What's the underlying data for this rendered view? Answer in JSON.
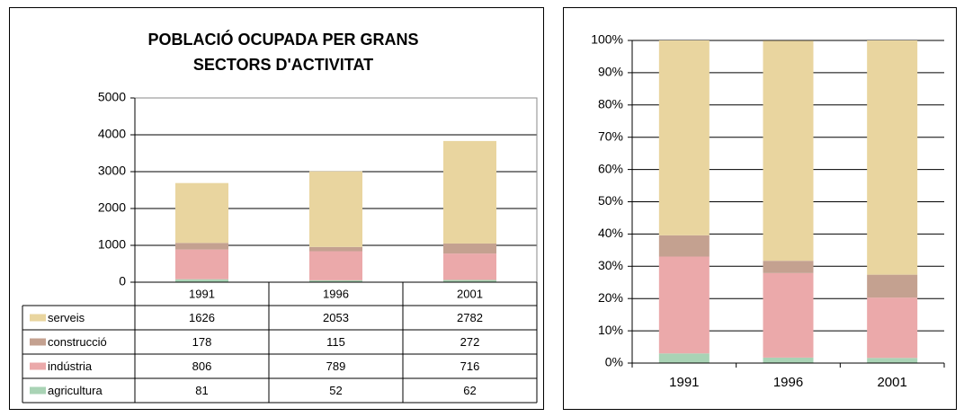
{
  "chart_data": [
    {
      "type": "bar",
      "stacked": true,
      "title": [
        "POBLACIÓ OCUPADA PER GRANS",
        "SECTORS D'ACTIVITAT"
      ],
      "categories": [
        "1991",
        "1996",
        "2001"
      ],
      "series": [
        {
          "name": "agricultura",
          "color": "#a9d3b5",
          "values": [
            81,
            52,
            62
          ]
        },
        {
          "name": "indústria",
          "color": "#eba9aa",
          "values": [
            806,
            789,
            716
          ]
        },
        {
          "name": "construcció",
          "color": "#c4a190",
          "values": [
            178,
            115,
            272
          ]
        },
        {
          "name": "serveis",
          "color": "#e9d59f",
          "values": [
            1626,
            2053,
            2782
          ]
        }
      ],
      "ylim": [
        0,
        5000
      ],
      "yticks": [
        0,
        1000,
        2000,
        3000,
        4000,
        5000
      ],
      "grid": true,
      "data_table": true
    },
    {
      "type": "bar",
      "stacked": true,
      "categories": [
        "1991",
        "1996",
        "2001"
      ],
      "series": [
        {
          "color": "#a9d3b5",
          "values": [
            3.0,
            1.7,
            1.6
          ]
        },
        {
          "color": "#eba9aa",
          "values": [
            30.0,
            26.2,
            18.7
          ]
        },
        {
          "color": "#c4a190",
          "values": [
            6.6,
            3.8,
            7.1
          ]
        },
        {
          "color": "#e9d59f",
          "values": [
            60.4,
            68.2,
            72.6
          ]
        }
      ],
      "ylim": [
        0,
        100
      ],
      "yticks": [
        {
          "value": 0,
          "label": "0%"
        },
        {
          "value": 10,
          "label": "10%"
        },
        {
          "value": 20,
          "label": "20%"
        },
        {
          "value": 30,
          "label": "30%"
        },
        {
          "value": 40,
          "label": "40%"
        },
        {
          "value": 50,
          "label": "50%"
        },
        {
          "value": 60,
          "label": "60%"
        },
        {
          "value": 70,
          "label": "70%"
        },
        {
          "value": 80,
          "label": "80%"
        },
        {
          "value": 90,
          "label": "90%"
        },
        {
          "value": 100,
          "label": "100%"
        }
      ],
      "grid": true
    }
  ]
}
